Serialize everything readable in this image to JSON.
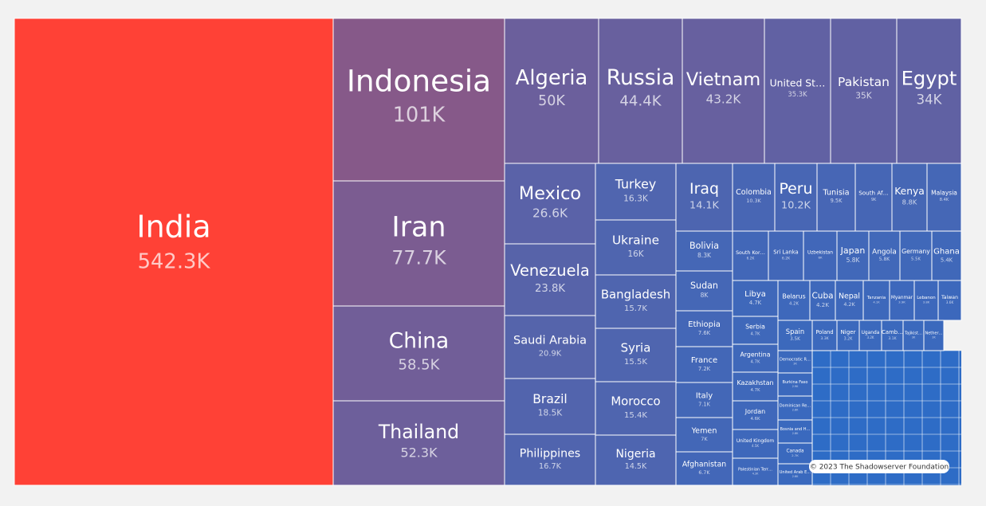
{
  "chart_data": {
    "type": "treemap",
    "categories": [
      "India",
      "Indonesia",
      "Iran",
      "China",
      "Thailand",
      "Algeria",
      "Russia",
      "Vietnam",
      "United St…",
      "Pakistan",
      "Egypt",
      "Mexico",
      "Venezuela",
      "Saudi Arabia",
      "Brazil",
      "Philippines",
      "Turkey",
      "Ukraine",
      "Bangladesh",
      "Syria",
      "Morocco",
      "Nigeria",
      "Iraq",
      "Bolivia",
      "Sudan",
      "Ethiopia",
      "France",
      "Italy",
      "Yemen",
      "Afghanistan",
      "Colombia",
      "Peru",
      "Tunisia",
      "South Af…",
      "Kenya",
      "Malaysia",
      "South Kor…",
      "Sri Lanka",
      "Uzbekistan",
      "Japan",
      "Angola",
      "Germany",
      "Ghana",
      "Libya",
      "Serbia",
      "Argentina",
      "Kazakhstan",
      "Jordan",
      "United Kingdom",
      "Palestinian Terr…",
      "Belarus",
      "Cuba",
      "Nepal",
      "Tanzania",
      "Myanmar",
      "Lebanon",
      "Taiwan",
      "Spain",
      "Poland",
      "Niger",
      "Uganda",
      "Camb…",
      "Tajikist…",
      "Nether…",
      "Democratic R…",
      "Burkina Faso",
      "Dominican Re…",
      "Bosnia and H…",
      "Canada",
      "United Arab E…"
    ],
    "values": [
      542300,
      101000,
      77700,
      58500,
      52300,
      50000,
      44400,
      43200,
      35300,
      35000,
      34000,
      26600,
      23800,
      20900,
      18500,
      16700,
      16300,
      16000,
      15700,
      15500,
      15400,
      14500,
      14100,
      8300,
      8000,
      7600,
      7200,
      7100,
      7000,
      6700,
      10300,
      10200,
      9500,
      9000,
      8800,
      8400,
      6200,
      6200,
      6000,
      5800,
      5800,
      5500,
      5400,
      4700,
      4700,
      4700,
      4700,
      4600,
      4500,
      4300,
      4200,
      4200,
      4200,
      4100,
      3900,
      3800,
      3600,
      3500,
      3300,
      3200,
      3200,
      3100,
      3000,
      3000,
      3000,
      2900,
      2800,
      2800,
      2700,
      2600
    ],
    "value_labels": [
      "542.3K",
      "101K",
      "77.7K",
      "58.5K",
      "52.3K",
      "50K",
      "44.4K",
      "43.2K",
      "35.3K",
      "35K",
      "34K",
      "26.6K",
      "23.8K",
      "20.9K",
      "18.5K",
      "16.7K",
      "16.3K",
      "16K",
      "15.7K",
      "15.5K",
      "15.4K",
      "14.5K",
      "14.1K",
      "8.3K",
      "8K",
      "7.6K",
      "7.2K",
      "7.1K",
      "7K",
      "6.7K",
      "10.3K",
      "10.2K",
      "9.5K",
      "9K",
      "8.8K",
      "8.4K",
      "6.2K",
      "6.2K",
      "6K",
      "5.8K",
      "5.8K",
      "5.5K",
      "5.4K",
      "4.7K",
      "4.7K",
      "4.7K",
      "4.7K",
      "4.6K",
      "4.5K",
      "4.3K",
      "4.2K",
      "4.2K",
      "4.2K",
      "4.1K",
      "3.9K",
      "3.8K",
      "3.6K",
      "3.5K",
      "3.3K",
      "3.2K",
      "3.2K",
      "3.1K",
      "3K",
      "3K",
      "3K",
      "2.9K",
      "2.8K",
      "2.8K",
      "2.7K",
      "2.6K"
    ],
    "color_scale": [
      "#2b6cc8",
      "#ff4136"
    ],
    "credit": "© 2023 The Shadowserver Foundation"
  }
}
